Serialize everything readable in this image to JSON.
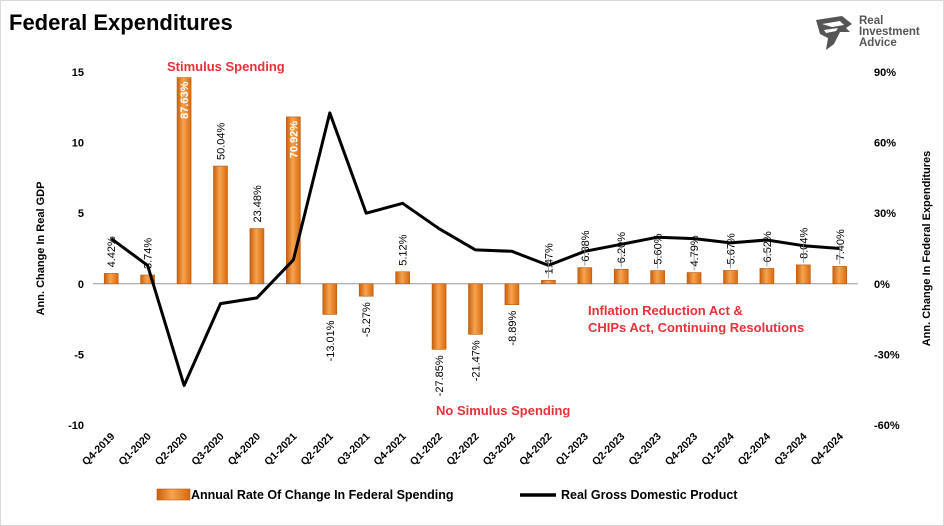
{
  "page": {
    "title": "Federal Expenditures",
    "logo": {
      "line1": "Real",
      "line2": "Investment",
      "line3": "Advice",
      "icon": "eagle-head-icon"
    }
  },
  "chart_data": {
    "type": "bar",
    "title": "Federal Expenditures",
    "categories": [
      "Q4-2019",
      "Q1-2020",
      "Q2-2020",
      "Q3-2020",
      "Q4-2020",
      "Q1-2021",
      "Q2-2021",
      "Q3-2021",
      "Q4-2021",
      "Q1-2022",
      "Q2-2022",
      "Q3-2022",
      "Q4-2022",
      "Q1-2023",
      "Q2-2023",
      "Q3-2023",
      "Q4-2023",
      "Q1-2024",
      "Q2-2024",
      "Q3-2024",
      "Q4-2024"
    ],
    "ylabel_left": "Ann. Change In Real GDP",
    "ylabel_right": "Ann. Change In Federal Expenditures",
    "ylim_left": [
      -10,
      15
    ],
    "ylim_right": [
      -60,
      90
    ],
    "yticks_left": [
      "-10",
      "-5",
      "0",
      "5",
      "10",
      "15"
    ],
    "yticks_right": [
      "-60%",
      "-30%",
      "0%",
      "30%",
      "60%",
      "90%"
    ],
    "series": [
      {
        "name": "Annual Rate Of Change In Federal Spending",
        "axis": "right",
        "kind": "bar",
        "color": "#e87b1e",
        "values": [
          4.42,
          3.74,
          87.63,
          50.04,
          23.48,
          70.92,
          -13.01,
          -5.27,
          5.12,
          -27.85,
          -21.47,
          -8.89,
          1.47,
          6.88,
          6.2,
          5.6,
          4.79,
          5.67,
          6.52,
          8.04,
          7.4
        ],
        "labels": [
          "4.42%",
          "3.74%",
          "87.63%",
          "50.04%",
          "23.48%",
          "70.92%",
          "-13.01%",
          "-5.27%",
          "5.12%",
          "-27.85%",
          "-21.47%",
          "-8.89%",
          "1.47%",
          "6.88%",
          "6.20%",
          "5.60%",
          "4.79%",
          "5.67%",
          "6.52%",
          "8.04%",
          "7.40%"
        ]
      },
      {
        "name": "Real Gross Domestic Product",
        "axis": "left",
        "kind": "line",
        "color": "#000000",
        "values": [
          3.2,
          1.3,
          -7.2,
          -1.4,
          -1.0,
          1.7,
          12.1,
          5.0,
          5.7,
          3.9,
          2.4,
          2.3,
          1.3,
          2.3,
          2.8,
          3.3,
          3.2,
          2.9,
          3.1,
          2.7,
          2.5
        ]
      }
    ],
    "annotations": [
      {
        "text": "Stimulus Spending",
        "color": "#e8313a"
      },
      {
        "text": "No Simulus Spending",
        "color": "#e8313a"
      },
      {
        "text": "Inflation Reduction Act &",
        "color": "#e8313a"
      },
      {
        "text": "CHIPs Act, Continuing Resolutions",
        "color": "#e8313a"
      }
    ],
    "legend_position": "bottom",
    "grid": false
  }
}
